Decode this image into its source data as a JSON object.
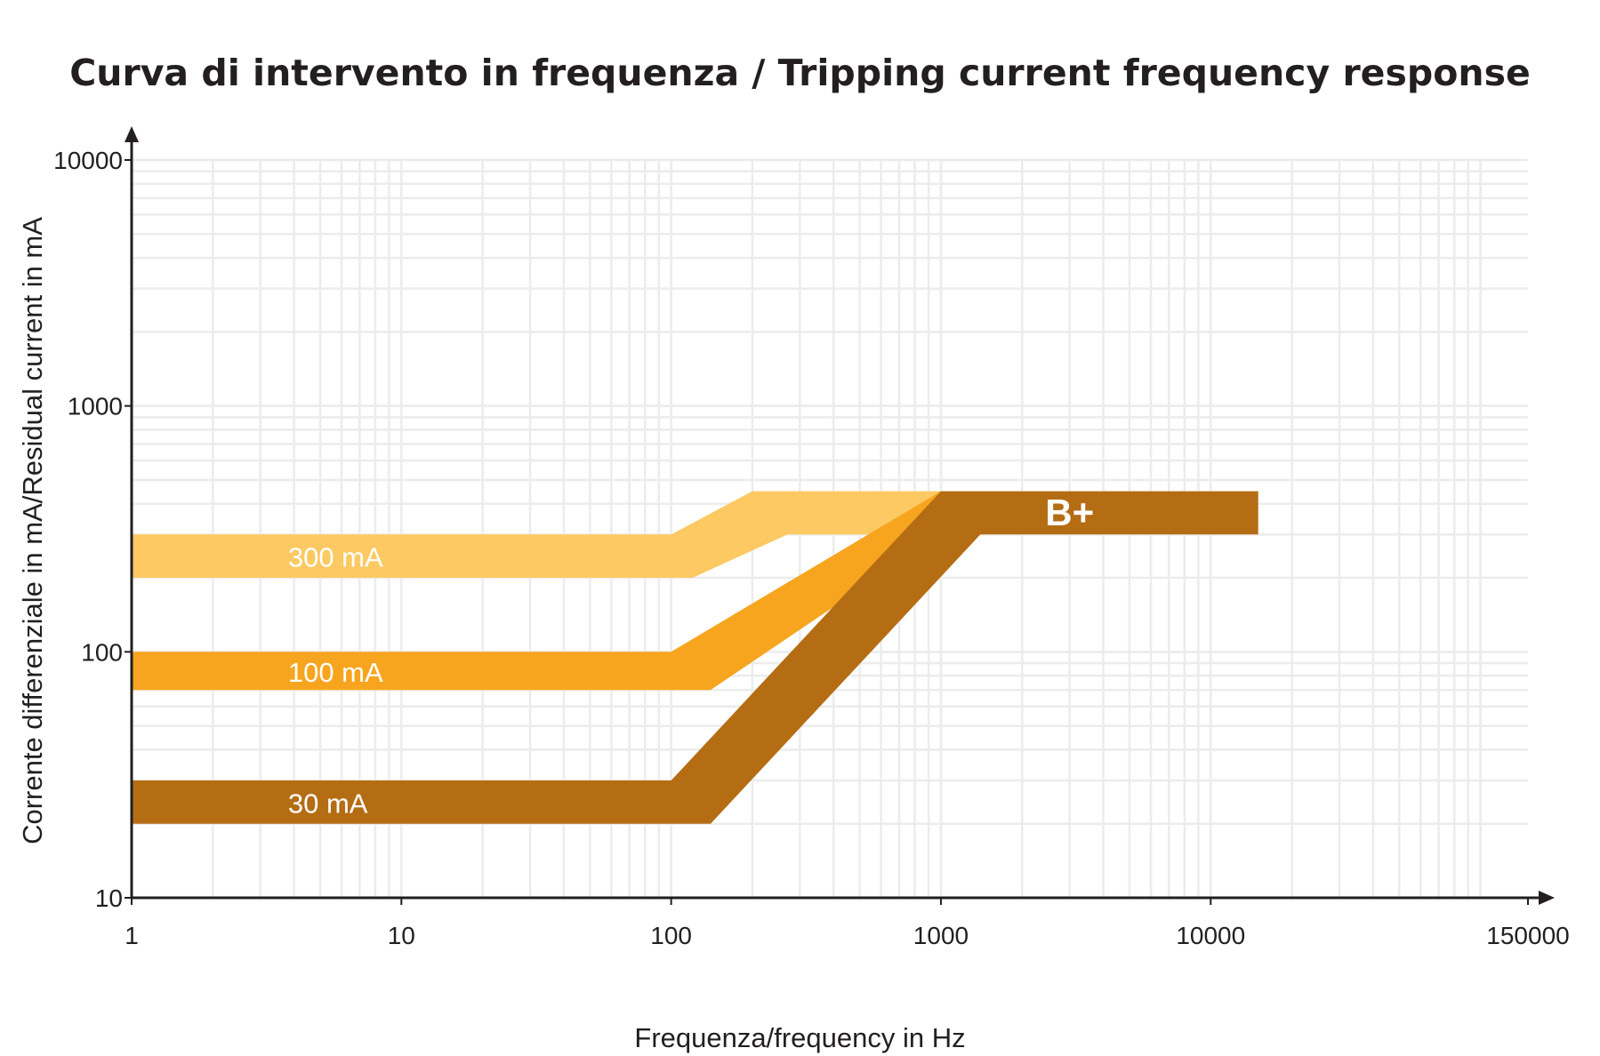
{
  "chart_data": {
    "type": "area",
    "title": "Curva di intervento in frequenza / Tripping current frequency response",
    "xlabel": "Frequenza/frequency in Hz",
    "ylabel": "Corrente differenziale in mA/Residual current in mA",
    "x_scale": "log",
    "y_scale": "log",
    "xlim": [
      1,
      150000
    ],
    "ylim": [
      10,
      10000
    ],
    "x_ticks": [
      1,
      10,
      100,
      1000,
      10000,
      150000
    ],
    "x_tick_labels": [
      "1",
      "10",
      "100",
      "1000",
      "10000",
      "150000"
    ],
    "y_ticks": [
      10,
      100,
      1000,
      10000
    ],
    "y_tick_labels": [
      "10",
      "100",
      "1000",
      "10000"
    ],
    "grid": true,
    "series": [
      {
        "name": "300 mA",
        "color": "#fdc962",
        "upper": {
          "x": [
            1,
            100,
            200,
            1000
          ],
          "y": [
            300,
            300,
            450,
            450
          ]
        },
        "lower": {
          "x": [
            1,
            120,
            270,
            1000
          ],
          "y": [
            200,
            200,
            300,
            300
          ]
        }
      },
      {
        "name": "100 mA",
        "color": "#f7a51f",
        "upper": {
          "x": [
            1,
            100,
            1000
          ],
          "y": [
            100,
            100,
            450
          ]
        },
        "lower": {
          "x": [
            1,
            140,
            1000
          ],
          "y": [
            70,
            70,
            300
          ]
        }
      },
      {
        "name": "30 mA",
        "color": "#b56d14",
        "upper": {
          "x": [
            1,
            100,
            1000,
            15000
          ],
          "y": [
            30,
            30,
            450,
            450
          ]
        },
        "lower": {
          "x": [
            1,
            140,
            1400,
            15000
          ],
          "y": [
            20,
            20,
            300,
            300
          ]
        }
      }
    ],
    "annotations": [
      {
        "text": "B+",
        "x": 3000,
        "y": 370
      }
    ]
  }
}
